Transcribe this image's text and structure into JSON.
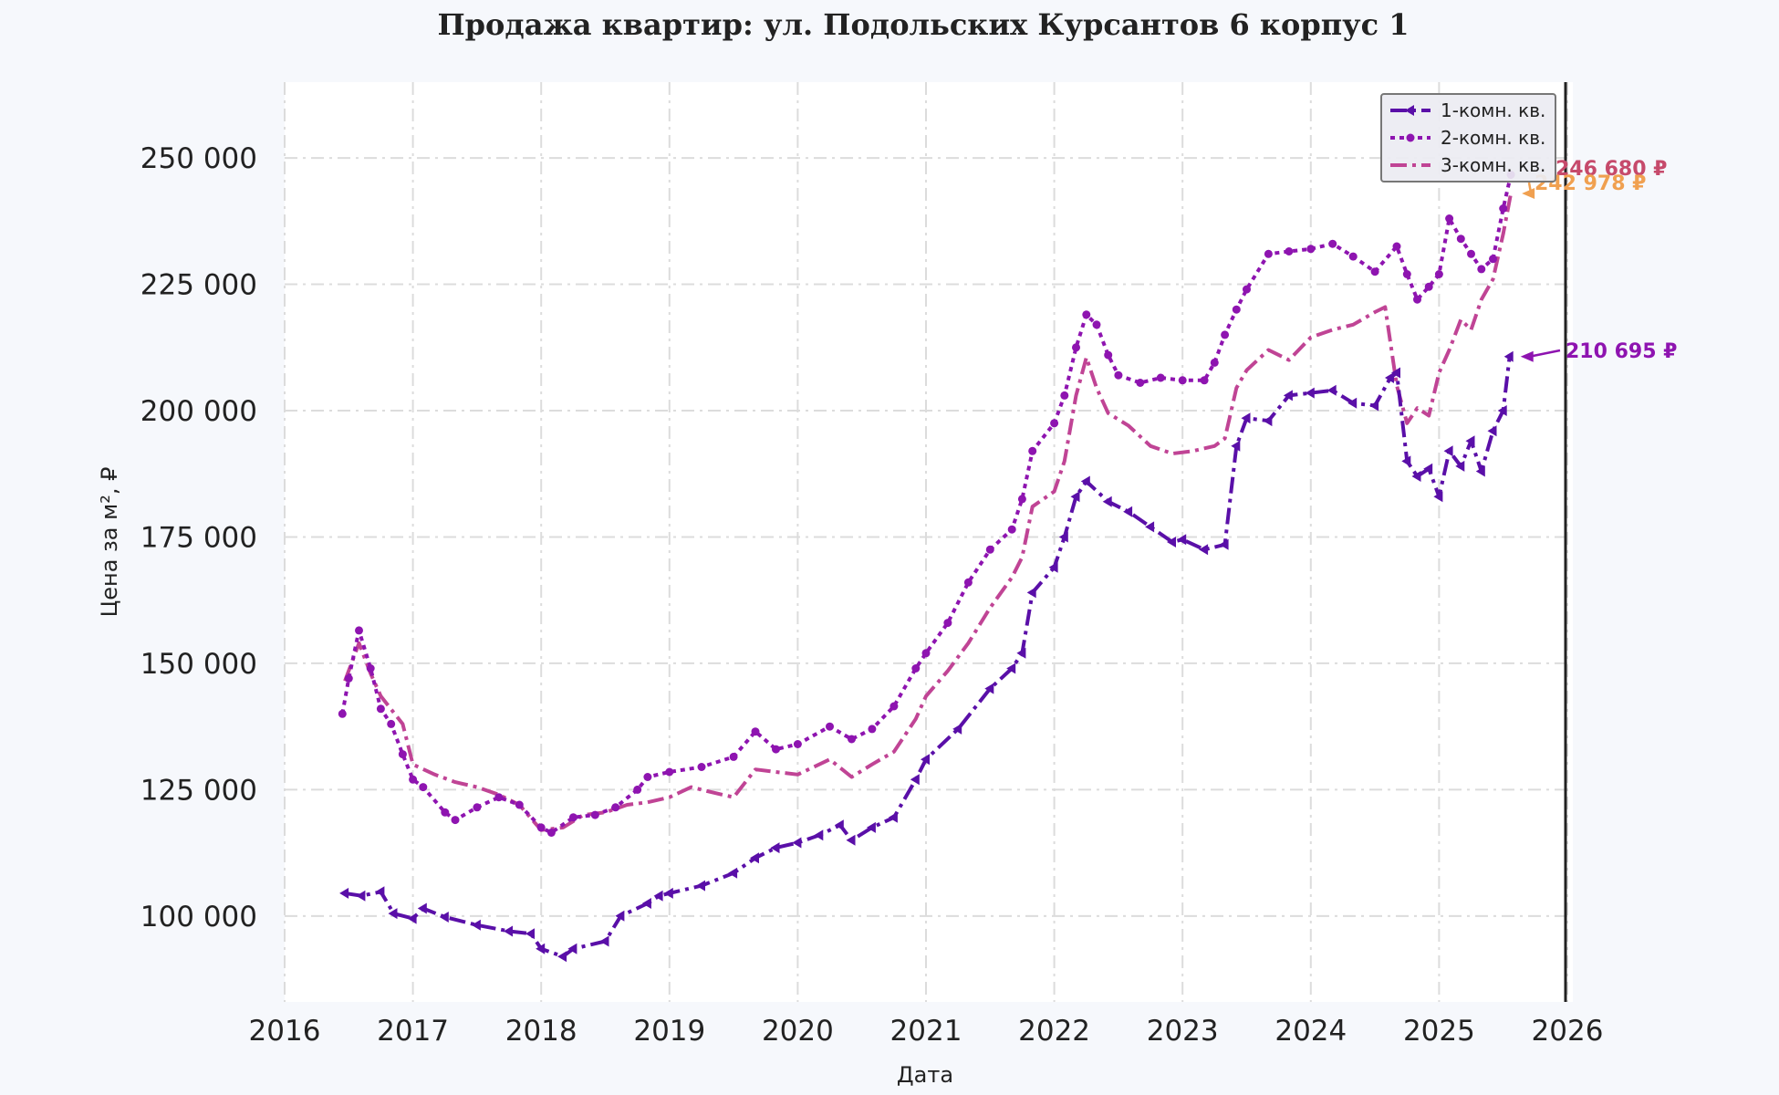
{
  "chart_data": {
    "type": "line",
    "title": "Продажа квартир: ул. Подольских Курсантов 6 корпус 1",
    "xlabel": "Дата",
    "ylabel": "Цена за м², ₽",
    "xlim": [
      2016.0,
      2026.0
    ],
    "ylim": [
      83000,
      265000
    ],
    "x_ticks": [
      "2016",
      "2017",
      "2018",
      "2019",
      "2020",
      "2021",
      "2022",
      "2023",
      "2024",
      "2025",
      "2026"
    ],
    "y_ticks": [
      "100 000",
      "125 000",
      "150 000",
      "175 000",
      "200 000",
      "225 000",
      "250 000"
    ],
    "y_tick_values": [
      100000,
      125000,
      150000,
      175000,
      200000,
      225000,
      250000
    ],
    "grid": true,
    "legend_position": "top-right",
    "series": [
      {
        "name": "1-комн. кв.",
        "color": "#5a0fa8",
        "marker": "triangle-left",
        "dash": "dash-dot",
        "points": [
          [
            2016.47,
            104500
          ],
          [
            2016.6,
            104000
          ],
          [
            2016.75,
            104800
          ],
          [
            2016.85,
            100500
          ],
          [
            2017.0,
            99500
          ],
          [
            2017.08,
            101500
          ],
          [
            2017.25,
            99800
          ],
          [
            2017.5,
            98200
          ],
          [
            2017.75,
            97000
          ],
          [
            2017.92,
            96500
          ],
          [
            2018.0,
            93500
          ],
          [
            2018.17,
            92000
          ],
          [
            2018.25,
            93500
          ],
          [
            2018.5,
            95000
          ],
          [
            2018.62,
            100000
          ],
          [
            2018.83,
            102500
          ],
          [
            2018.92,
            104000
          ],
          [
            2019.0,
            104500
          ],
          [
            2019.25,
            106000
          ],
          [
            2019.5,
            108500
          ],
          [
            2019.67,
            111500
          ],
          [
            2019.83,
            113500
          ],
          [
            2020.0,
            114500
          ],
          [
            2020.17,
            116000
          ],
          [
            2020.33,
            118000
          ],
          [
            2020.42,
            115000
          ],
          [
            2020.58,
            117500
          ],
          [
            2020.75,
            119500
          ],
          [
            2020.92,
            127000
          ],
          [
            2021.0,
            131000
          ],
          [
            2021.25,
            137000
          ],
          [
            2021.5,
            145000
          ],
          [
            2021.67,
            149000
          ],
          [
            2021.75,
            152000
          ],
          [
            2021.83,
            164000
          ],
          [
            2022.0,
            169000
          ],
          [
            2022.08,
            175000
          ],
          [
            2022.17,
            183000
          ],
          [
            2022.25,
            186000
          ],
          [
            2022.42,
            182000
          ],
          [
            2022.58,
            180000
          ],
          [
            2022.75,
            177000
          ],
          [
            2022.92,
            174000
          ],
          [
            2023.0,
            174500
          ],
          [
            2023.17,
            172500
          ],
          [
            2023.33,
            173500
          ],
          [
            2023.42,
            193000
          ],
          [
            2023.5,
            198500
          ],
          [
            2023.67,
            198000
          ],
          [
            2023.83,
            203000
          ],
          [
            2024.0,
            203500
          ],
          [
            2024.17,
            204000
          ],
          [
            2024.33,
            201500
          ],
          [
            2024.5,
            201000
          ],
          [
            2024.62,
            206500
          ],
          [
            2024.67,
            207500
          ],
          [
            2024.75,
            190000
          ],
          [
            2024.83,
            187000
          ],
          [
            2024.92,
            188500
          ],
          [
            2025.0,
            183000
          ],
          [
            2025.08,
            192000
          ],
          [
            2025.17,
            189000
          ],
          [
            2025.25,
            194000
          ],
          [
            2025.33,
            188000
          ],
          [
            2025.42,
            196000
          ],
          [
            2025.5,
            200000
          ],
          [
            2025.55,
            210695
          ]
        ]
      },
      {
        "name": "2-комн. кв.",
        "color": "#8e14b0",
        "marker": "circle",
        "dash": "dotted",
        "points": [
          [
            2016.45,
            140000
          ],
          [
            2016.5,
            147000
          ],
          [
            2016.58,
            156500
          ],
          [
            2016.67,
            149000
          ],
          [
            2016.75,
            141000
          ],
          [
            2016.83,
            138000
          ],
          [
            2016.92,
            132000
          ],
          [
            2017.0,
            127000
          ],
          [
            2017.08,
            125500
          ],
          [
            2017.25,
            120500
          ],
          [
            2017.33,
            119000
          ],
          [
            2017.5,
            121500
          ],
          [
            2017.67,
            123500
          ],
          [
            2017.83,
            122000
          ],
          [
            2018.0,
            117500
          ],
          [
            2018.08,
            116500
          ],
          [
            2018.25,
            119500
          ],
          [
            2018.42,
            120000
          ],
          [
            2018.58,
            121500
          ],
          [
            2018.75,
            125000
          ],
          [
            2018.83,
            127500
          ],
          [
            2019.0,
            128500
          ],
          [
            2019.25,
            129500
          ],
          [
            2019.5,
            131500
          ],
          [
            2019.67,
            136500
          ],
          [
            2019.83,
            133000
          ],
          [
            2020.0,
            134000
          ],
          [
            2020.25,
            137500
          ],
          [
            2020.42,
            135000
          ],
          [
            2020.58,
            137000
          ],
          [
            2020.75,
            141500
          ],
          [
            2020.92,
            149000
          ],
          [
            2021.0,
            152000
          ],
          [
            2021.17,
            158000
          ],
          [
            2021.33,
            166000
          ],
          [
            2021.5,
            172500
          ],
          [
            2021.67,
            176500
          ],
          [
            2021.75,
            182500
          ],
          [
            2021.83,
            192000
          ],
          [
            2022.0,
            197500
          ],
          [
            2022.08,
            203000
          ],
          [
            2022.17,
            212500
          ],
          [
            2022.25,
            219000
          ],
          [
            2022.33,
            217000
          ],
          [
            2022.42,
            211000
          ],
          [
            2022.5,
            207000
          ],
          [
            2022.67,
            205500
          ],
          [
            2022.83,
            206500
          ],
          [
            2023.0,
            206000
          ],
          [
            2023.17,
            206000
          ],
          [
            2023.25,
            209500
          ],
          [
            2023.33,
            215000
          ],
          [
            2023.42,
            220000
          ],
          [
            2023.5,
            224000
          ],
          [
            2023.67,
            231000
          ],
          [
            2023.83,
            231500
          ],
          [
            2024.0,
            232000
          ],
          [
            2024.17,
            233000
          ],
          [
            2024.33,
            230500
          ],
          [
            2024.5,
            227500
          ],
          [
            2024.67,
            232500
          ],
          [
            2024.75,
            227000
          ],
          [
            2024.83,
            222000
          ],
          [
            2024.92,
            224500
          ],
          [
            2025.0,
            227000
          ],
          [
            2025.08,
            238000
          ],
          [
            2025.17,
            234000
          ],
          [
            2025.25,
            231000
          ],
          [
            2025.33,
            228000
          ],
          [
            2025.42,
            230000
          ],
          [
            2025.5,
            240000
          ],
          [
            2025.56,
            246680
          ]
        ]
      },
      {
        "name": "3-комн. кв.",
        "color": "#c04495",
        "marker": "none",
        "dash": "dash-dot",
        "points": [
          [
            2016.47,
            146500
          ],
          [
            2016.58,
            154000
          ],
          [
            2016.67,
            148000
          ],
          [
            2016.75,
            143500
          ],
          [
            2016.92,
            138000
          ],
          [
            2017.0,
            130000
          ],
          [
            2017.17,
            128000
          ],
          [
            2017.33,
            126500
          ],
          [
            2017.5,
            125500
          ],
          [
            2017.67,
            124000
          ],
          [
            2017.83,
            122000
          ],
          [
            2018.0,
            117000
          ],
          [
            2018.17,
            117500
          ],
          [
            2018.33,
            120000
          ],
          [
            2018.5,
            120500
          ],
          [
            2018.67,
            122000
          ],
          [
            2018.83,
            122500
          ],
          [
            2019.0,
            123500
          ],
          [
            2019.17,
            125500
          ],
          [
            2019.33,
            124500
          ],
          [
            2019.5,
            123500
          ],
          [
            2019.67,
            129000
          ],
          [
            2019.83,
            128500
          ],
          [
            2020.0,
            128000
          ],
          [
            2020.25,
            131000
          ],
          [
            2020.42,
            127500
          ],
          [
            2020.58,
            130000
          ],
          [
            2020.75,
            132500
          ],
          [
            2020.92,
            139000
          ],
          [
            2021.0,
            143500
          ],
          [
            2021.17,
            148500
          ],
          [
            2021.33,
            154000
          ],
          [
            2021.5,
            161000
          ],
          [
            2021.67,
            167000
          ],
          [
            2021.75,
            171000
          ],
          [
            2021.83,
            181000
          ],
          [
            2022.0,
            184000
          ],
          [
            2022.08,
            190000
          ],
          [
            2022.17,
            203000
          ],
          [
            2022.25,
            210500
          ],
          [
            2022.33,
            204500
          ],
          [
            2022.42,
            199500
          ],
          [
            2022.58,
            197000
          ],
          [
            2022.75,
            193000
          ],
          [
            2022.92,
            191500
          ],
          [
            2023.08,
            192000
          ],
          [
            2023.25,
            193000
          ],
          [
            2023.33,
            194500
          ],
          [
            2023.42,
            204500
          ],
          [
            2023.5,
            208000
          ],
          [
            2023.67,
            212000
          ],
          [
            2023.83,
            210000
          ],
          [
            2024.0,
            214500
          ],
          [
            2024.17,
            216000
          ],
          [
            2024.33,
            217000
          ],
          [
            2024.5,
            219500
          ],
          [
            2024.58,
            220500
          ],
          [
            2024.67,
            205000
          ],
          [
            2024.75,
            197500
          ],
          [
            2024.83,
            200500
          ],
          [
            2024.92,
            199000
          ],
          [
            2025.0,
            207500
          ],
          [
            2025.08,
            212000
          ],
          [
            2025.17,
            218000
          ],
          [
            2025.25,
            216000
          ],
          [
            2025.33,
            222000
          ],
          [
            2025.42,
            226000
          ],
          [
            2025.5,
            235000
          ],
          [
            2025.56,
            242978
          ]
        ]
      }
    ],
    "annotations": [
      {
        "text": "246 680 ₽",
        "series": 1,
        "color": "#c64a6b"
      },
      {
        "text": "242 978 ₽",
        "series": 2,
        "color": "#f0a050"
      },
      {
        "text": "210 695 ₽",
        "series": 0,
        "color": "#8e14b0"
      }
    ]
  }
}
